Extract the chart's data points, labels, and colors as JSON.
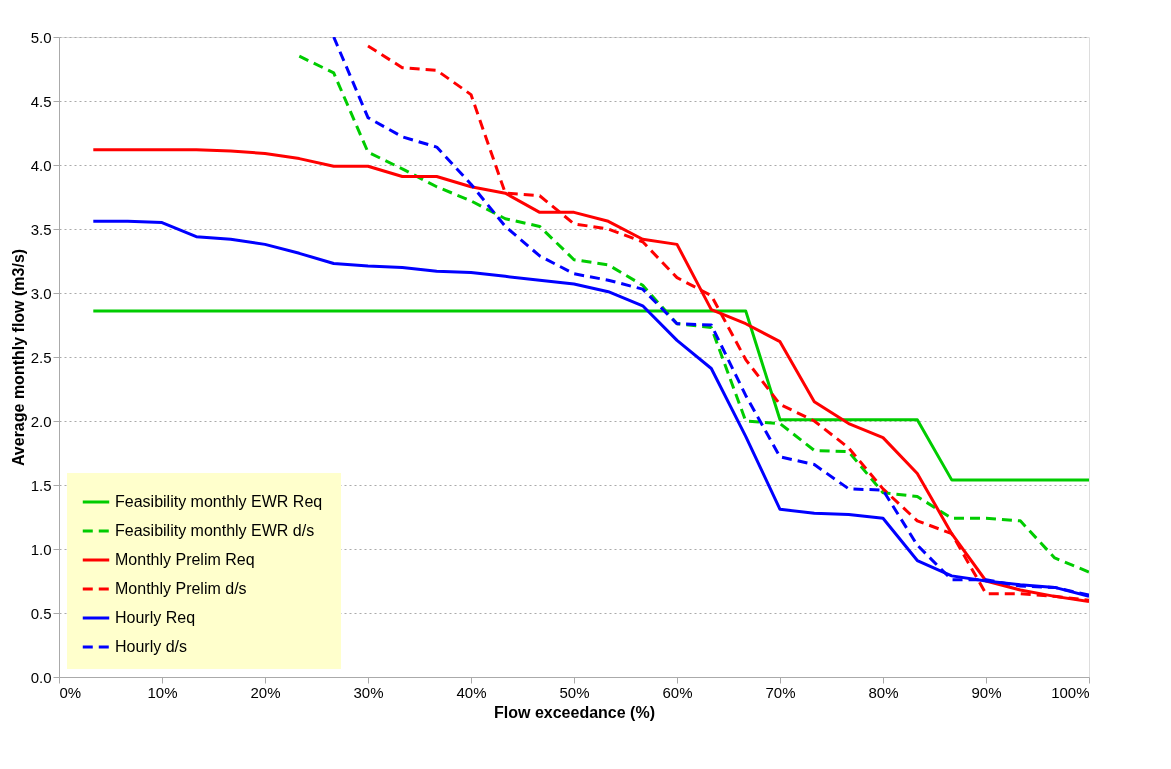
{
  "chart_data": {
    "type": "line",
    "xlabel": "Flow exceedance (%)",
    "ylabel": "Average monthly flow (m3/s)",
    "x": [
      3.33,
      6.67,
      10,
      13.33,
      16.67,
      20,
      23.33,
      26.67,
      30,
      33.33,
      36.67,
      40,
      43.33,
      46.67,
      50,
      53.33,
      56.67,
      60,
      63.33,
      66.67,
      70,
      73.33,
      76.67,
      80,
      83.33,
      86.67,
      90,
      93.33,
      96.67,
      100
    ],
    "series": [
      {
        "name": "Feasibility monthly EWR  Req",
        "color": "#00cc00",
        "line_style": "solid",
        "values": [
          2.86,
          2.86,
          2.86,
          2.86,
          2.86,
          2.86,
          2.86,
          2.86,
          2.86,
          2.86,
          2.86,
          2.86,
          2.86,
          2.86,
          2.86,
          2.86,
          2.86,
          2.86,
          2.86,
          2.86,
          2.01,
          2.01,
          2.01,
          2.01,
          2.01,
          1.54,
          1.54,
          1.54,
          1.54,
          1.54
        ]
      },
      {
        "name": "Feasibility monthly EWR  d/s",
        "color": "#00cc00",
        "line_style": "dashed",
        "values": [
          null,
          null,
          null,
          null,
          null,
          null,
          4.85,
          4.72,
          4.1,
          3.97,
          3.83,
          3.72,
          3.58,
          3.52,
          3.26,
          3.22,
          3.06,
          2.76,
          2.73,
          2.0,
          1.98,
          1.77,
          1.76,
          1.44,
          1.41,
          1.24,
          1.24,
          1.22,
          0.93,
          0.82
        ]
      },
      {
        "name": "Monthly Prelim  Req",
        "color": "#ff0000",
        "line_style": "solid",
        "values": [
          4.12,
          4.12,
          4.12,
          4.12,
          4.11,
          4.09,
          4.05,
          3.99,
          3.99,
          3.91,
          3.91,
          3.83,
          3.78,
          3.63,
          3.63,
          3.56,
          3.42,
          3.38,
          2.87,
          2.76,
          2.62,
          2.15,
          1.98,
          1.87,
          1.59,
          1.12,
          0.75,
          0.68,
          0.63,
          0.59
        ]
      },
      {
        "name": "Monthly Prelim  d/s",
        "color": "#ff0000",
        "line_style": "dashed",
        "values": [
          null,
          null,
          null,
          null,
          null,
          null,
          null,
          null,
          4.93,
          4.76,
          4.74,
          4.55,
          3.78,
          3.76,
          3.54,
          3.5,
          3.4,
          3.12,
          2.98,
          2.48,
          2.13,
          2.0,
          1.79,
          1.47,
          1.22,
          1.12,
          0.65,
          0.65,
          0.63,
          0.6
        ]
      },
      {
        "name": "Hourly  Req",
        "color": "#0000ff",
        "line_style": "solid",
        "values": [
          3.56,
          3.56,
          3.55,
          3.44,
          3.42,
          3.38,
          3.31,
          3.23,
          3.21,
          3.2,
          3.17,
          3.16,
          3.13,
          3.1,
          3.07,
          3.01,
          2.9,
          2.63,
          2.41,
          1.88,
          1.31,
          1.28,
          1.27,
          1.24,
          0.91,
          0.79,
          0.75,
          0.72,
          0.7,
          0.63
        ]
      },
      {
        "name": "Hourly  d/s",
        "color": "#0000ff",
        "line_style": "dashed",
        "values": [
          null,
          null,
          null,
          null,
          null,
          null,
          null,
          5.0,
          4.37,
          4.22,
          4.14,
          3.85,
          3.52,
          3.29,
          3.15,
          3.1,
          3.03,
          2.76,
          2.75,
          2.2,
          1.72,
          1.66,
          1.47,
          1.46,
          1.03,
          0.76,
          0.76,
          0.71,
          0.7,
          0.64
        ]
      }
    ],
    "xlim": [
      0,
      100
    ],
    "xticks": [
      {
        "value": 0,
        "label": "0%"
      },
      {
        "value": 10,
        "label": "10%"
      },
      {
        "value": 20,
        "label": "20%"
      },
      {
        "value": 30,
        "label": "30%"
      },
      {
        "value": 40,
        "label": "40%"
      },
      {
        "value": 50,
        "label": "50%"
      },
      {
        "value": 60,
        "label": "60%"
      },
      {
        "value": 70,
        "label": "70%"
      },
      {
        "value": 80,
        "label": "80%"
      },
      {
        "value": 90,
        "label": "90%"
      },
      {
        "value": 100,
        "label": "100%"
      }
    ],
    "ylim": [
      0,
      5
    ],
    "yticks": [
      {
        "value": 0,
        "label": "0.0"
      },
      0.5,
      {
        "value": 1,
        "label": "1.0"
      },
      1.5,
      {
        "value": 2,
        "label": "2.0"
      },
      2.5,
      {
        "value": 3,
        "label": "3.0"
      },
      3.5,
      {
        "value": 4,
        "label": "4.0"
      },
      4.5,
      {
        "value": 5,
        "label": "5.0"
      }
    ],
    "grid": "y",
    "legend": "bottom left",
    "marker": "none"
  }
}
